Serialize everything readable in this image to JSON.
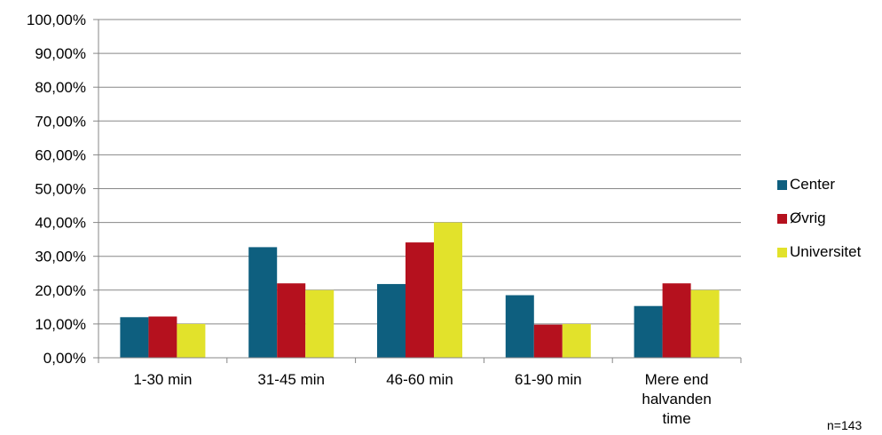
{
  "chart_data": {
    "type": "bar",
    "categories": [
      [
        "1-30 min"
      ],
      [
        "31-45 min"
      ],
      [
        "46-60 min"
      ],
      [
        "61-90 min"
      ],
      [
        "Mere end",
        "halvanden",
        "time"
      ]
    ],
    "series": [
      {
        "name": "Center",
        "color": "#0e5f7f",
        "values": [
          12.0,
          32.7,
          21.8,
          18.5,
          15.3
        ]
      },
      {
        "name": "Øvrig",
        "color": "#b5111e",
        "values": [
          12.2,
          22.0,
          34.1,
          9.8,
          22.0
        ]
      },
      {
        "name": "Universitet",
        "color": "#e2e22b",
        "values": [
          10.0,
          20.0,
          40.0,
          10.0,
          20.0
        ]
      }
    ],
    "ylim": [
      0,
      100
    ],
    "yticks": [
      "0,00%",
      "10,00%",
      "20,00%",
      "30,00%",
      "40,00%",
      "50,00%",
      "60,00%",
      "70,00%",
      "80,00%",
      "90,00%",
      "100,00%"
    ],
    "grid": true,
    "legend": "right"
  },
  "note": "n=143"
}
